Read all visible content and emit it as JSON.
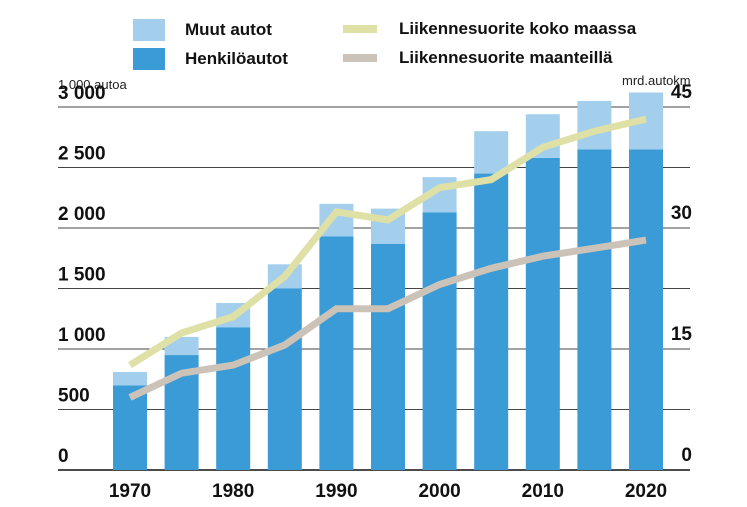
{
  "chart_data": {
    "type": "bar",
    "categories": [
      "1970",
      "1975",
      "1980",
      "1985",
      "1990",
      "1995",
      "2000",
      "2005",
      "2010",
      "2015",
      "2020"
    ],
    "x_tick_labels": [
      "1970",
      "1980",
      "1990",
      "2000",
      "2010",
      "2020"
    ],
    "series": [
      {
        "name": "Henkilöautot",
        "stack": true,
        "values": [
          700,
          950,
          1180,
          1500,
          1930,
          1870,
          2130,
          2450,
          2580,
          2650,
          2650
        ],
        "color": "#3a9bd6"
      },
      {
        "name": "Muut autot",
        "stack": true,
        "values": [
          110,
          150,
          200,
          200,
          270,
          290,
          290,
          350,
          360,
          400,
          470
        ],
        "color": "#a3cfec"
      }
    ],
    "line_series": [
      {
        "name": "Liikennesuorite koko maassa",
        "axis": "right",
        "x": [
          1970,
          1975,
          1980,
          1985,
          1990,
          1995,
          2000,
          2005,
          2010,
          2015,
          2020
        ],
        "values": [
          13,
          17,
          19,
          24,
          32,
          31,
          35,
          36,
          40,
          42,
          43.5
        ],
        "color": "#dfe0a5"
      },
      {
        "name": "Liikennesuorite maanteillä",
        "axis": "right",
        "x": [
          1970,
          1975,
          1980,
          1985,
          1990,
          1995,
          2000,
          2005,
          2010,
          2015,
          2020
        ],
        "values": [
          9,
          12,
          13,
          15.5,
          20,
          20,
          23,
          25,
          26.5,
          27.5,
          28.5
        ],
        "color": "#cbc3b8"
      }
    ],
    "y_left": {
      "label": "1 000 autoa",
      "ticks": [
        "0",
        "500",
        "1 000",
        "1 500",
        "2 000",
        "2 500",
        "3 000"
      ],
      "tick_values": [
        0,
        500,
        1000,
        1500,
        2000,
        2500,
        3000
      ],
      "range": [
        0,
        3000
      ]
    },
    "y_right": {
      "label": "mrd.autokm",
      "ticks": [
        "0",
        "15",
        "30",
        "45"
      ],
      "tick_values": [
        0,
        15,
        30,
        45
      ],
      "range": [
        0,
        45
      ]
    },
    "grid": "horizontal",
    "legend_position": "top"
  },
  "legend": {
    "muut": {
      "label": "Muut autot",
      "color": "#a3cfec"
    },
    "henkilo": {
      "label": "Henkilöautot",
      "color": "#3a9bd6"
    },
    "koko": {
      "label": "Liikennesuorite koko maassa",
      "color": "#dfe0a5"
    },
    "maantie": {
      "label": "Liikennesuorite maanteillä",
      "color": "#cbc3b8"
    }
  }
}
